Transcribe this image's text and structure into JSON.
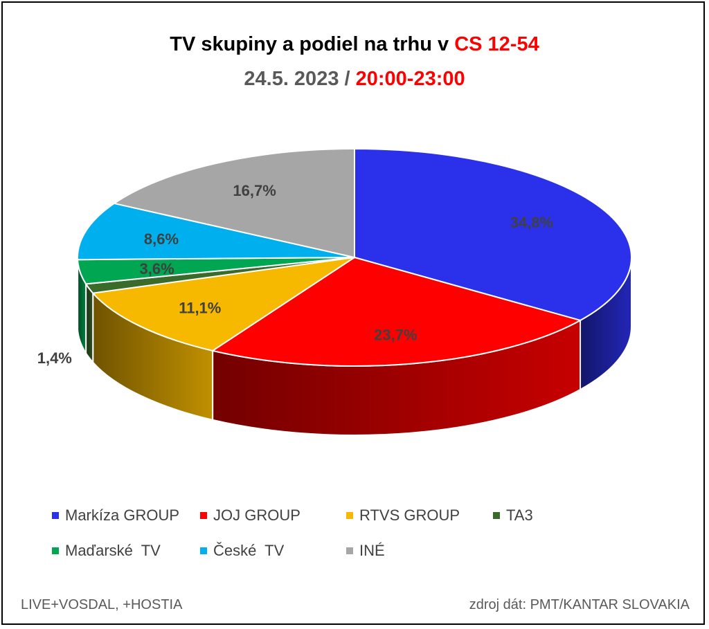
{
  "title": {
    "line1_main": "TV skupiny a podiel na trhu v ",
    "line1_highlight": "CS 12-54",
    "line2_main": "24.5. 2023 / ",
    "line2_highlight": "20:00-23:00"
  },
  "colors": {
    "highlight": "#ff0000",
    "Markiza": "#2b31ea",
    "JOJ": "#ff0000",
    "RTVS": "#f7b800",
    "TA3": "#3a6b2a",
    "Madarske": "#00a651",
    "Ceske": "#00b0ee",
    "Ine": "#a6a6a6"
  },
  "chart_data": {
    "type": "pie",
    "title": "TV skupiny a podiel na trhu v CS 12-54 24.5. 2023 / 20:00-23:00",
    "categories": [
      "Markíza GROUP",
      "JOJ GROUP",
      "RTVS GROUP",
      "TA3",
      "Maďarské  TV",
      "České  TV",
      "INÉ"
    ],
    "values": [
      34.8,
      23.7,
      11.1,
      1.4,
      3.6,
      8.6,
      16.7
    ],
    "value_labels": [
      "34,8%",
      "23,7%",
      "11,1%",
      "1,4%",
      "3,6%",
      "8,6%",
      "16,7%"
    ],
    "legend_position": "bottom"
  },
  "footer": {
    "left": "LIVE+VOSDAL, +HOSTIA",
    "right": "zdroj dát: PMT/KANTAR SLOVAKIA"
  }
}
